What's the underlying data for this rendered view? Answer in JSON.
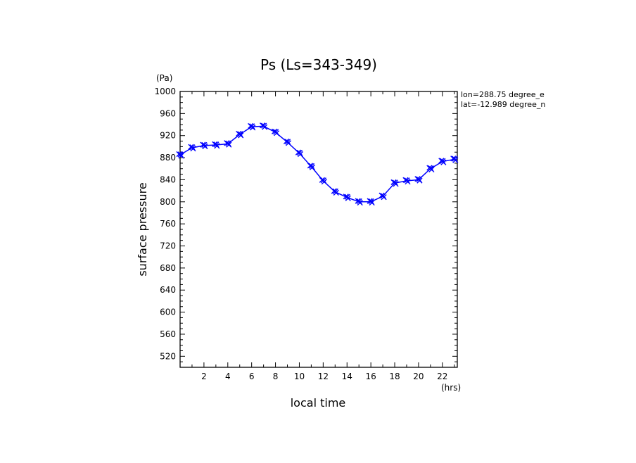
{
  "chart_data": {
    "type": "line",
    "title": "Ps (Ls=343-349)",
    "xlabel": "local time",
    "ylabel": "surface pressure",
    "x_unit": "(hrs)",
    "y_unit": "(Pa)",
    "annotations": [
      "lon=288.75 degree_e",
      "lat=-12.989 degree_n"
    ],
    "xlim": [
      0,
      23.25
    ],
    "ylim": [
      500,
      1000
    ],
    "x_ticks": [
      2,
      4,
      6,
      8,
      10,
      12,
      14,
      16,
      18,
      20,
      22
    ],
    "y_ticks": [
      520,
      560,
      600,
      640,
      680,
      720,
      760,
      800,
      840,
      880,
      920,
      960,
      1000
    ],
    "grid": false,
    "color": "#0000ff",
    "marker": "x",
    "series": [
      {
        "x": [
          0,
          1,
          2,
          3,
          4,
          5,
          6,
          7,
          8,
          9,
          10,
          11,
          12,
          13,
          14,
          15,
          16,
          17,
          18,
          19,
          20,
          21,
          22,
          23
        ],
        "values": [
          885,
          898,
          902,
          903,
          905,
          922,
          936,
          937,
          926,
          908,
          888,
          864,
          838,
          818,
          808,
          800,
          800,
          810,
          834,
          838,
          840,
          860,
          873,
          877
        ]
      }
    ]
  }
}
